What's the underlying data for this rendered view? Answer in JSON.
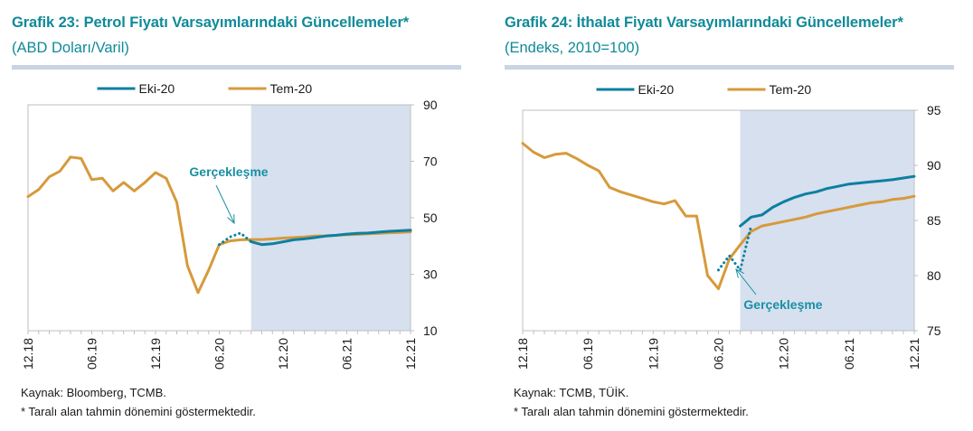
{
  "colors": {
    "title": "#0f8a98",
    "series_new": "#0e7fa0",
    "series_old": "#d69a3b",
    "shade": "#d6e0ef",
    "annotation": "#1a8fa3"
  },
  "left": {
    "title": "Grafik 23: Petrol Fiyatı Varsayımlarındaki Güncellemeler*",
    "subtitle": "(ABD Doları/Varil)",
    "source": "Kaynak: Bloomberg, TCMB.",
    "note": "* Taralı alan tahmin dönemini göstermektedir."
  },
  "right": {
    "title": "Grafik 24: İthalat Fiyatı Varsayımlarındaki Güncellemeler*",
    "subtitle": "(Endeks, 2010=100)",
    "source": "Kaynak: TCMB, TÜİK.",
    "note": "* Taralı alan tahmin dönemini göstermektedir."
  },
  "chart_data": [
    {
      "type": "line",
      "x_ticks": [
        "12.18",
        "06.19",
        "12.19",
        "06.20",
        "12.20",
        "06.21",
        "12.21"
      ],
      "xlim": [
        "2018-12",
        "2021-12"
      ],
      "ylim": [
        10,
        90
      ],
      "y_ticks": [
        10,
        30,
        50,
        70,
        90
      ],
      "y_axis_side": "right",
      "forecast_shade_from": "2020-09",
      "legend_position": "top",
      "annotation": {
        "text": "Gerçekleşme",
        "points_to": "2020-08"
      },
      "series": [
        {
          "name": "Eki-20",
          "color": "#0e7fa0",
          "points": [
            [
              "2020-09",
              41.5
            ],
            [
              "2020-10",
              40.5
            ],
            [
              "2020-11",
              40.8
            ],
            [
              "2020-12",
              41.5
            ],
            [
              "2021-01",
              42.2
            ],
            [
              "2021-02",
              42.5
            ],
            [
              "2021-03",
              43.0
            ],
            [
              "2021-04",
              43.5
            ],
            [
              "2021-05",
              43.8
            ],
            [
              "2021-06",
              44.2
            ],
            [
              "2021-07",
              44.5
            ],
            [
              "2021-08",
              44.6
            ],
            [
              "2021-09",
              44.9
            ],
            [
              "2021-10",
              45.2
            ],
            [
              "2021-11",
              45.4
            ],
            [
              "2021-12",
              45.6
            ]
          ]
        },
        {
          "name": "Tem-20",
          "color": "#d69a3b",
          "points": [
            [
              "2018-12",
              57.5
            ],
            [
              "2019-01",
              60.0
            ],
            [
              "2019-02",
              64.5
            ],
            [
              "2019-03",
              66.5
            ],
            [
              "2019-04",
              71.5
            ],
            [
              "2019-05",
              71.0
            ],
            [
              "2019-06",
              63.5
            ],
            [
              "2019-07",
              64.0
            ],
            [
              "2019-08",
              59.5
            ],
            [
              "2019-09",
              62.5
            ],
            [
              "2019-10",
              59.5
            ],
            [
              "2019-11",
              62.5
            ],
            [
              "2019-12",
              66.0
            ],
            [
              "2020-01",
              64.0
            ],
            [
              "2020-02",
              55.5
            ],
            [
              "2020-03",
              33.0
            ],
            [
              "2020-04",
              23.5
            ],
            [
              "2020-05",
              31.5
            ],
            [
              "2020-06",
              40.5
            ],
            [
              "2020-07",
              41.8
            ],
            [
              "2020-08",
              42.2
            ],
            [
              "2020-09",
              42.3
            ],
            [
              "2020-10",
              42.3
            ],
            [
              "2020-11",
              42.5
            ],
            [
              "2020-12",
              42.8
            ],
            [
              "2021-01",
              43.0
            ],
            [
              "2021-02",
              43.2
            ],
            [
              "2021-03",
              43.5
            ],
            [
              "2021-04",
              43.6
            ],
            [
              "2021-05",
              43.8
            ],
            [
              "2021-06",
              44.0
            ],
            [
              "2021-07",
              44.1
            ],
            [
              "2021-08",
              44.3
            ],
            [
              "2021-09",
              44.5
            ],
            [
              "2021-10",
              44.7
            ],
            [
              "2021-11",
              44.8
            ],
            [
              "2021-12",
              45.0
            ]
          ]
        },
        {
          "name": "Gerçekleşme",
          "color": "#0e7fa0",
          "dashed": true,
          "points": [
            [
              "2020-06",
              40.5
            ],
            [
              "2020-07",
              43.2
            ],
            [
              "2020-08",
              44.6
            ],
            [
              "2020-09",
              41.5
            ]
          ]
        }
      ]
    },
    {
      "type": "line",
      "x_ticks": [
        "12.18",
        "06.19",
        "12.19",
        "06.20",
        "12.20",
        "06.21",
        "12.21"
      ],
      "xlim": [
        "2018-12",
        "2021-12"
      ],
      "ylim": [
        75,
        95
      ],
      "y_ticks": [
        75,
        80,
        85,
        90,
        95
      ],
      "y_axis_side": "right",
      "forecast_shade_from": "2020-08",
      "legend_position": "top",
      "annotation": {
        "text": "Gerçekleşme",
        "points_to": "2020-07"
      },
      "series": [
        {
          "name": "Eki-20",
          "color": "#0e7fa0",
          "points": [
            [
              "2020-08",
              84.5
            ],
            [
              "2020-09",
              85.3
            ],
            [
              "2020-10",
              85.5
            ],
            [
              "2020-11",
              86.2
            ],
            [
              "2020-12",
              86.7
            ],
            [
              "2021-01",
              87.1
            ],
            [
              "2021-02",
              87.4
            ],
            [
              "2021-03",
              87.6
            ],
            [
              "2021-04",
              87.9
            ],
            [
              "2021-05",
              88.1
            ],
            [
              "2021-06",
              88.3
            ],
            [
              "2021-07",
              88.4
            ],
            [
              "2021-08",
              88.5
            ],
            [
              "2021-09",
              88.6
            ],
            [
              "2021-10",
              88.7
            ],
            [
              "2021-11",
              88.85
            ],
            [
              "2021-12",
              89.0
            ]
          ]
        },
        {
          "name": "Tem-20",
          "color": "#d69a3b",
          "points": [
            [
              "2018-12",
              92.0
            ],
            [
              "2019-01",
              91.2
            ],
            [
              "2019-02",
              90.7
            ],
            [
              "2019-03",
              91.0
            ],
            [
              "2019-04",
              91.1
            ],
            [
              "2019-05",
              90.6
            ],
            [
              "2019-06",
              90.0
            ],
            [
              "2019-07",
              89.5
            ],
            [
              "2019-08",
              88.0
            ],
            [
              "2019-09",
              87.6
            ],
            [
              "2019-10",
              87.3
            ],
            [
              "2019-11",
              87.0
            ],
            [
              "2019-12",
              86.7
            ],
            [
              "2020-01",
              86.5
            ],
            [
              "2020-02",
              86.8
            ],
            [
              "2020-03",
              85.4
            ],
            [
              "2020-04",
              85.4
            ],
            [
              "2020-05",
              80.0
            ],
            [
              "2020-06",
              78.8
            ],
            [
              "2020-07",
              81.5
            ],
            [
              "2020-08",
              82.8
            ],
            [
              "2020-09",
              84.0
            ],
            [
              "2020-10",
              84.5
            ],
            [
              "2020-11",
              84.7
            ],
            [
              "2020-12",
              84.9
            ],
            [
              "2021-01",
              85.1
            ],
            [
              "2021-02",
              85.3
            ],
            [
              "2021-03",
              85.6
            ],
            [
              "2021-04",
              85.8
            ],
            [
              "2021-05",
              86.0
            ],
            [
              "2021-06",
              86.2
            ],
            [
              "2021-07",
              86.4
            ],
            [
              "2021-08",
              86.6
            ],
            [
              "2021-09",
              86.7
            ],
            [
              "2021-10",
              86.9
            ],
            [
              "2021-11",
              87.0
            ],
            [
              "2021-12",
              87.2
            ]
          ]
        },
        {
          "name": "Gerçekleşme",
          "color": "#0e7fa0",
          "dashed": true,
          "points": [
            [
              "2020-06",
              80.5
            ],
            [
              "2020-07",
              81.8
            ],
            [
              "2020-08",
              80.5
            ],
            [
              "2020-09",
              84.5
            ]
          ]
        }
      ]
    }
  ]
}
